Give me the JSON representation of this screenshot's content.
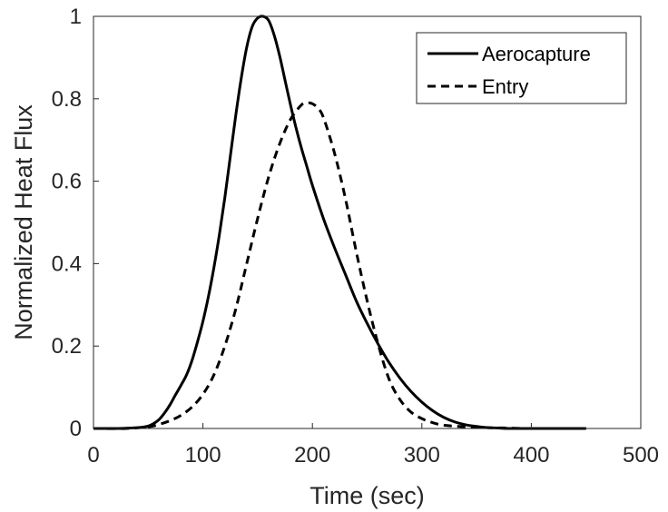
{
  "chart_data": {
    "type": "line",
    "title": "",
    "xlabel": "Time (sec)",
    "ylabel": "Normalized Heat Flux",
    "xlim": [
      0,
      500
    ],
    "ylim": [
      0,
      1
    ],
    "xticks": [
      0,
      100,
      200,
      300,
      400,
      500
    ],
    "yticks": [
      0,
      0.2,
      0.4,
      0.6,
      0.8,
      1
    ],
    "xtick_labels": [
      "0",
      "100",
      "200",
      "300",
      "400",
      "500"
    ],
    "ytick_labels": [
      "0",
      "0.2",
      "0.4",
      "0.6",
      "0.8",
      "1"
    ],
    "grid": false,
    "legend_position": "top-right",
    "series": [
      {
        "name": "Aerocapture",
        "line_style": "solid",
        "color": "#000000",
        "x": [
          0,
          20,
          40,
          50,
          55,
          60,
          65,
          70,
          75,
          80,
          85,
          90,
          95,
          100,
          105,
          110,
          115,
          120,
          125,
          130,
          135,
          140,
          145,
          150,
          155,
          160,
          165,
          170,
          175,
          180,
          185,
          190,
          195,
          200,
          210,
          220,
          230,
          240,
          250,
          260,
          270,
          280,
          290,
          300,
          310,
          320,
          330,
          340,
          350,
          360,
          370,
          380,
          400,
          420,
          450
        ],
        "y": [
          0,
          0,
          0.002,
          0.006,
          0.012,
          0.022,
          0.038,
          0.058,
          0.082,
          0.105,
          0.13,
          0.165,
          0.21,
          0.26,
          0.32,
          0.39,
          0.47,
          0.56,
          0.66,
          0.76,
          0.85,
          0.925,
          0.975,
          0.996,
          1.0,
          0.99,
          0.955,
          0.905,
          0.845,
          0.785,
          0.73,
          0.68,
          0.635,
          0.59,
          0.51,
          0.44,
          0.375,
          0.31,
          0.255,
          0.205,
          0.16,
          0.122,
          0.09,
          0.064,
          0.043,
          0.027,
          0.016,
          0.009,
          0.005,
          0.002,
          0.001,
          0,
          0,
          0,
          0
        ]
      },
      {
        "name": "Entry",
        "line_style": "dashed",
        "color": "#000000",
        "x": [
          0,
          30,
          50,
          60,
          70,
          80,
          90,
          100,
          110,
          120,
          130,
          140,
          150,
          160,
          170,
          180,
          190,
          195,
          200,
          205,
          210,
          220,
          230,
          240,
          250,
          260,
          270,
          280,
          290,
          300,
          310,
          320,
          340,
          360,
          380,
          400,
          450
        ],
        "y": [
          0,
          0,
          0.004,
          0.01,
          0.019,
          0.032,
          0.052,
          0.083,
          0.13,
          0.2,
          0.29,
          0.4,
          0.51,
          0.61,
          0.69,
          0.75,
          0.785,
          0.79,
          0.788,
          0.777,
          0.755,
          0.67,
          0.56,
          0.43,
          0.31,
          0.205,
          0.12,
          0.07,
          0.04,
          0.024,
          0.014,
          0.008,
          0.004,
          0.002,
          0.001,
          0,
          0
        ]
      }
    ]
  }
}
